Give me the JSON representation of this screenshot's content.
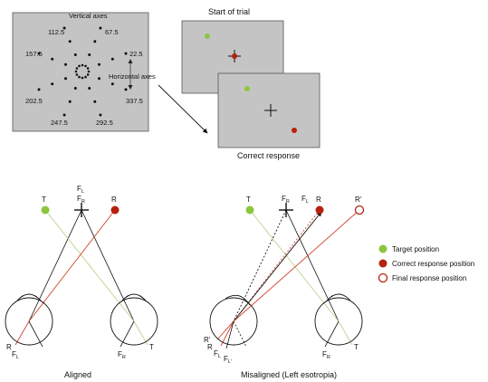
{
  "panel_a": {
    "label_vertical_axes": "Vertical axes",
    "label_horizontal_axes": "Horizontal axes",
    "angles": [
      "112.5",
      "67.5",
      "157.5",
      "22.5",
      "202.5",
      "337.5",
      "247.5",
      "292.5"
    ]
  },
  "trial": {
    "start_label": "Start of trial",
    "correct_label": "Correct response"
  },
  "aligned": {
    "caption": "Aligned",
    "t": "T",
    "fl": "F",
    "fl_sub": "L",
    "fr": "F",
    "fr_sub": "R",
    "r": "R",
    "left_eye_r": "R",
    "left_eye_fl": "F",
    "left_eye_fl_sub": "L",
    "right_eye_fr": "F",
    "right_eye_fr_sub": "R",
    "right_eye_t": "T"
  },
  "misaligned": {
    "caption": "Misaligned (Left esotropia)",
    "t": "T",
    "fr": "F",
    "fr_sub": "R",
    "fl": "F",
    "fl_sub": "L",
    "r": "R",
    "r_prime": "R'",
    "left_eye_rp": "R'",
    "left_eye_r": "R",
    "left_eye_fl": "F",
    "left_eye_fl_sub": "L",
    "left_eye_flp": "F",
    "left_eye_flp_sub": "L'",
    "right_eye_fr": "F",
    "right_eye_fr_sub": "R",
    "right_eye_t": "T"
  },
  "legend": {
    "target": "Target position",
    "correct": "Correct response position",
    "final": "Final response position"
  },
  "colors": {
    "target_green": "#8cc63f",
    "response_red": "#b5200f",
    "panel_gray": "#c4c4c4",
    "target_line": "#b8d68a",
    "response_line": "#d0442c"
  }
}
